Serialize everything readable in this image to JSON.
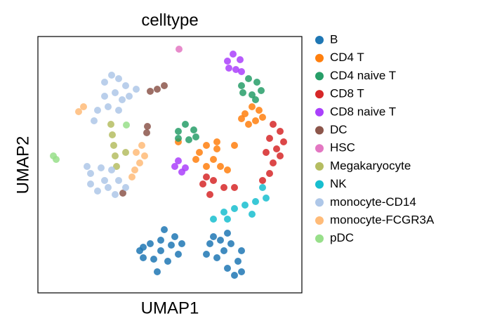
{
  "chart_data": {
    "type": "scatter",
    "title": "celltype",
    "xlabel": "UMAP1",
    "ylabel": "UMAP2",
    "xlim": [
      0,
      376
    ],
    "ylim": [
      0,
      365
    ],
    "legend": "outside right",
    "series": [
      {
        "name": "B",
        "color": "#1f77b4",
        "x": [
          145,
          160,
          175,
          190,
          200,
          185,
          165,
          150,
          175,
          195,
          180,
          170,
          150,
          205,
          245,
          260,
          275,
          290,
          285,
          270,
          255,
          240,
          265,
          280,
          290,
          250,
          270
        ],
        "values": [
          60,
          70,
          75,
          68,
          55,
          45,
          48,
          50,
          60,
          80,
          90,
          30,
          65,
          70,
          70,
          75,
          70,
          60,
          45,
          35,
          50,
          55,
          60,
          25,
          30,
          80,
          85
        ]
      },
      {
        "name": "CD4 T",
        "color": "#ff7f0e",
        "x": [
          230,
          240,
          255,
          250,
          240,
          260,
          225,
          255,
          295,
          305,
          315,
          310,
          300,
          320,
          290,
          280,
          270,
          200
        ],
        "values": [
          200,
          210,
          205,
          190,
          180,
          180,
          190,
          215,
          255,
          265,
          260,
          245,
          240,
          250,
          248,
          210,
          175,
          215
        ]
      },
      {
        "name": "CD4 naive T",
        "color": "#279e68",
        "x": [
          200,
          210,
          222,
          215,
          200,
          225,
          290,
          300,
          312,
          318,
          305,
          292,
          310
        ],
        "values": [
          230,
          240,
          232,
          218,
          220,
          222,
          295,
          305,
          300,
          288,
          282,
          285,
          275
        ]
      },
      {
        "name": "CD8 T",
        "color": "#d62728",
        "x": [
          335,
          345,
          330,
          340,
          325,
          335,
          330,
          345,
          350,
          320,
          235,
          250,
          265,
          280,
          245,
          240
        ],
        "values": [
          240,
          230,
          220,
          205,
          200,
          185,
          170,
          195,
          215,
          160,
          155,
          160,
          150,
          150,
          140,
          165
        ]
      },
      {
        "name": "CD8 naive T",
        "color": "#aa40fc",
        "x": [
          270,
          278,
          288,
          282,
          272,
          290,
          195,
          205,
          200,
          210
        ],
        "values": [
          330,
          340,
          332,
          318,
          320,
          315,
          180,
          172,
          188,
          178
        ]
      },
      {
        "name": "DC",
        "color": "#8c564b",
        "x": [
          160,
          170,
          180,
          156,
          155,
          121
        ],
        "values": [
          287,
          290,
          295,
          237,
          228,
          142
        ]
      },
      {
        "name": "HSC",
        "color": "#e377c2",
        "x": [
          201
        ],
        "values": [
          347
        ]
      },
      {
        "name": "Megakaryocyte",
        "color": "#b5bd61",
        "x": [
          104,
          106,
          108,
          110,
          112,
          125
        ],
        "values": [
          240,
          225,
          210,
          195,
          180,
          200
        ]
      },
      {
        "name": "NK",
        "color": "#17becf",
        "x": [
          265,
          280,
          295,
          310,
          325,
          320,
          270,
          305,
          250
        ],
        "values": [
          115,
          120,
          125,
          130,
          135,
          150,
          105,
          112,
          105
        ]
      },
      {
        "name": "monocyte-CD14",
        "color": "#aec7e8",
        "x": [
          95,
          105,
          115,
          125,
          110,
          95,
          120,
          100,
          115,
          130,
          85,
          80,
          140,
          75,
          90,
          105,
          115,
          100,
          85,
          75,
          110,
          125,
          95,
          70
        ],
        "values": [
          300,
          310,
          305,
          295,
          285,
          280,
          275,
          265,
          260,
          280,
          260,
          245,
          290,
          170,
          178,
          175,
          160,
          150,
          145,
          155,
          140,
          150,
          160,
          180
        ]
      },
      {
        "name": "monocyte-FCGR3A",
        "color": "#ffbb78",
        "x": [
          140,
          148,
          152,
          145,
          138,
          134,
          58,
          65
        ],
        "values": [
          200,
          210,
          195,
          185,
          175,
          165,
          258,
          265
        ]
      },
      {
        "name": "pDC",
        "color": "#98df8a",
        "x": [
          22,
          26,
          126
        ],
        "values": [
          195,
          190,
          239
        ]
      }
    ]
  }
}
